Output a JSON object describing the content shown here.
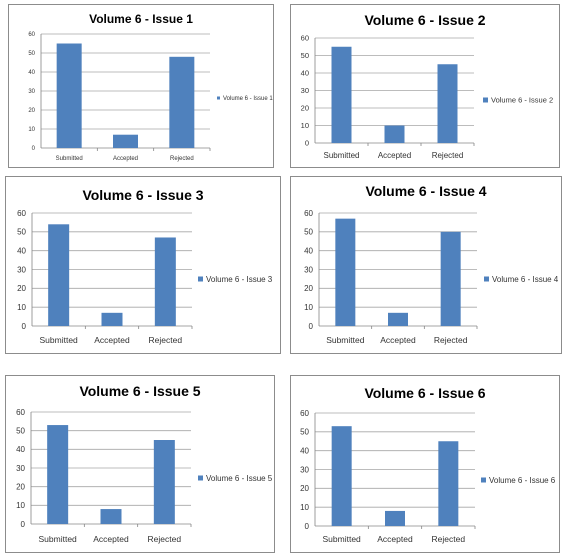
{
  "palette": {
    "bar": "#4f81bd",
    "grid": "#a6a6a6",
    "axis": "#868686"
  },
  "chart_data": [
    {
      "type": "bar",
      "title": "Volume 6 - Issue 1",
      "categories": [
        "Submitted",
        "Accepted",
        "Rejected"
      ],
      "series": [
        {
          "name": "Volume 6 - Issue 1",
          "values": [
            55,
            7,
            48
          ]
        }
      ],
      "ylim": [
        0,
        60
      ],
      "yticks": [
        0,
        10,
        20,
        30,
        40,
        50,
        60
      ],
      "grid": true,
      "legend": "right"
    },
    {
      "type": "bar",
      "title": "Volume 6 - Issue 2",
      "categories": [
        "Submitted",
        "Accepted",
        "Rejected"
      ],
      "series": [
        {
          "name": "Volume 6 - Issue 2",
          "values": [
            55,
            10,
            45
          ]
        }
      ],
      "ylim": [
        0,
        60
      ],
      "yticks": [
        0,
        10,
        20,
        30,
        40,
        50,
        60
      ],
      "grid": true,
      "legend": "right"
    },
    {
      "type": "bar",
      "title": "Volume 6 - Issue 3",
      "categories": [
        "Submitted",
        "Accepted",
        "Rejected"
      ],
      "series": [
        {
          "name": "Volume 6 - Issue 3",
          "values": [
            54,
            7,
            47
          ]
        }
      ],
      "ylim": [
        0,
        60
      ],
      "yticks": [
        0,
        10,
        20,
        30,
        40,
        50,
        60
      ],
      "grid": true,
      "legend": "right"
    },
    {
      "type": "bar",
      "title": "Volume 6 - Issue 4",
      "categories": [
        "Submitted",
        "Accepted",
        "Rejected"
      ],
      "series": [
        {
          "name": "Volume 6 - Issue 4",
          "values": [
            57,
            7,
            50
          ]
        }
      ],
      "ylim": [
        0,
        60
      ],
      "yticks": [
        0,
        10,
        20,
        30,
        40,
        50,
        60
      ],
      "grid": true,
      "legend": "right"
    },
    {
      "type": "bar",
      "title": "Volume 6 - Issue 5",
      "categories": [
        "Submitted",
        "Accepted",
        "Rejected"
      ],
      "series": [
        {
          "name": "Volume 6 - Issue 5",
          "values": [
            53,
            8,
            45
          ]
        }
      ],
      "ylim": [
        0,
        60
      ],
      "yticks": [
        0,
        10,
        20,
        30,
        40,
        50,
        60
      ],
      "grid": true,
      "legend": "right"
    },
    {
      "type": "bar",
      "title": "Volume 6 - Issue 6",
      "categories": [
        "Submitted",
        "Accepted",
        "Rejected"
      ],
      "series": [
        {
          "name": "Volume 6 - Issue 6",
          "values": [
            53,
            8,
            45
          ]
        }
      ],
      "ylim": [
        0,
        60
      ],
      "yticks": [
        0,
        10,
        20,
        30,
        40,
        50,
        60
      ],
      "grid": true,
      "legend": "right"
    }
  ]
}
